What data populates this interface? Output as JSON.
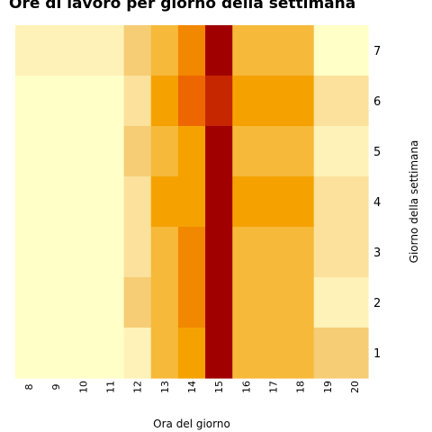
{
  "chart_data": {
    "type": "heatmap",
    "title": "Ore di lavoro per giorno della settimana",
    "xlabel": "Ora del giorno",
    "ylabel": "Giorno della settimana",
    "x": [
      "8",
      "9",
      "10",
      "11",
      "12",
      "13",
      "14",
      "15",
      "16",
      "17",
      "18",
      "19",
      "20"
    ],
    "y": [
      "7",
      "6",
      "5",
      "4",
      "3",
      "2",
      "1"
    ],
    "values": [
      [
        1,
        1,
        1,
        1,
        3,
        4,
        6,
        9,
        4,
        4,
        4,
        0,
        0
      ],
      [
        0,
        0,
        0,
        0,
        2,
        5,
        7,
        8,
        5,
        5,
        5,
        2,
        2
      ],
      [
        0,
        0,
        0,
        0,
        3,
        4,
        5,
        9,
        4,
        4,
        4,
        1,
        1
      ],
      [
        0,
        0,
        0,
        0,
        2,
        5,
        5,
        8.5,
        5,
        5,
        5,
        2,
        2
      ],
      [
        0,
        0,
        0,
        0,
        2,
        4,
        6,
        9,
        4,
        4,
        4,
        2,
        2
      ],
      [
        0,
        0,
        0,
        0,
        3,
        4,
        6,
        8.5,
        4,
        4,
        4,
        1,
        1
      ],
      [
        0,
        0,
        0,
        0,
        1,
        4,
        5,
        9,
        4,
        4,
        4,
        3,
        3
      ]
    ],
    "colorscale": [
      "#ffffc8",
      "#fff2b8",
      "#fbe19b",
      "#f6cd75",
      "#f6b93a",
      "#f5a200",
      "#f28700",
      "#ed6600",
      "#c62600",
      "#a00000",
      "#7a002a"
    ],
    "grid": false,
    "y_axis_side": "right"
  }
}
